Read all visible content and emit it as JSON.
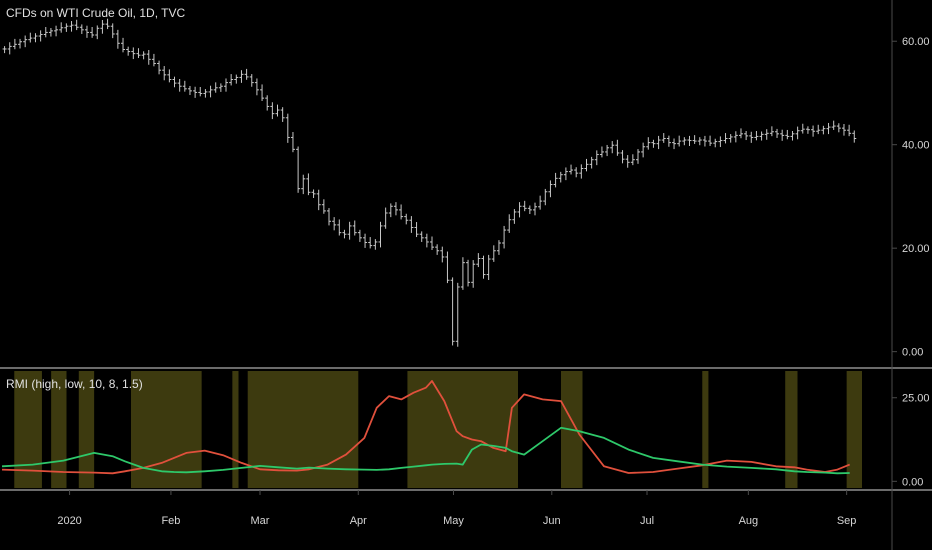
{
  "chart_data": [
    {
      "type": "bar",
      "subtype": "ohlc",
      "title": "CFDs on WTI Crude Oil, 1D, TVC",
      "y_ticks": [
        "60.00",
        "40.00",
        "20.00",
        "0.00"
      ],
      "ylim": [
        -2,
        67
      ],
      "x_range": [
        0,
        280
      ],
      "series_color": "#c8c8c8",
      "close": [
        58.5,
        59.0,
        59.4,
        59.9,
        60.3,
        60.6,
        61.0,
        61.3,
        61.7,
        62.0,
        62.2,
        62.6,
        62.9,
        63.1,
        62.7,
        62.2,
        61.7,
        61.2,
        62.5,
        63.3,
        62.9,
        61.4,
        59.6,
        58.4,
        58.0,
        57.6,
        57.3,
        57.5,
        56.5,
        55.7,
        54.4,
        53.5,
        52.6,
        51.9,
        51.3,
        50.8,
        50.4,
        50.1,
        49.9,
        50.2,
        50.6,
        51.0,
        51.3,
        52.0,
        52.6,
        53.0,
        53.6,
        53.1,
        52.0,
        50.6,
        49.0,
        47.4,
        46.0,
        46.7,
        45.2,
        41.4,
        39.1,
        31.5,
        33.4,
        30.8,
        30.5,
        28.4,
        27.2,
        25.2,
        24.5,
        23.0,
        22.7,
        24.3,
        23.0,
        22.0,
        21.1,
        20.5,
        21.2,
        24.3,
        26.8,
        28.1,
        27.4,
        26.1,
        25.4,
        24.0,
        22.7,
        22.0,
        21.2,
        20.2,
        19.5,
        18.3,
        13.8,
        2.0,
        12.5,
        17.2,
        13.4,
        16.9,
        18.0,
        14.9,
        17.9,
        19.5,
        21.0,
        23.5,
        25.5,
        27.0,
        28.1,
        27.7,
        27.4,
        28.0,
        29.1,
        30.9,
        32.3,
        33.5,
        34.2,
        34.8,
        35.1,
        34.5,
        35.4,
        36.2,
        37.1,
        38.1,
        38.6,
        39.4,
        39.9,
        38.4,
        37.2,
        36.6,
        37.1,
        38.6,
        39.6,
        40.4,
        40.2,
        40.9,
        41.2,
        40.4,
        40.2,
        40.7,
        40.9,
        40.8,
        40.7,
        40.9,
        40.7,
        40.3,
        40.6,
        40.8,
        41.2,
        41.5,
        41.8,
        42.1,
        41.7,
        41.4,
        41.6,
        42.0,
        42.2,
        42.5,
        42.1,
        41.8,
        41.6,
        42.1,
        42.7,
        43.0,
        42.9,
        42.6,
        42.8,
        43.1,
        43.4,
        43.6,
        43.2,
        42.8,
        42.2,
        41.2
      ]
    },
    {
      "type": "line",
      "title": "RMI (high, low, 10, 8, 1.5)",
      "y_ticks": [
        "25.00",
        "0.00"
      ],
      "ylim": [
        -2,
        33
      ],
      "x_range": [
        0,
        280
      ],
      "series": [
        {
          "color": "#e0503c",
          "x": [
            0,
            10,
            20,
            30,
            36,
            40,
            46,
            52,
            56,
            60,
            66,
            72,
            78,
            84,
            90,
            96,
            100,
            106,
            112,
            118,
            122,
            126,
            130,
            134,
            138,
            140,
            144,
            148,
            150,
            153,
            156,
            160,
            164,
            166,
            170,
            176,
            182,
            188,
            196,
            204,
            212,
            220,
            228,
            236,
            244,
            252,
            258,
            262,
            268,
            272,
            276
          ],
          "values": [
            3.5,
            3.2,
            2.8,
            2.6,
            2.4,
            3.0,
            4.0,
            5.5,
            7.0,
            8.5,
            9.2,
            7.8,
            5.5,
            3.6,
            3.3,
            3.2,
            3.6,
            5.0,
            8.0,
            13.0,
            22.0,
            25.5,
            24.5,
            26.5,
            28.0,
            30.0,
            24.0,
            15.0,
            13.5,
            12.5,
            12.0,
            10.0,
            9.0,
            22.0,
            26.0,
            24.5,
            24.0,
            14.0,
            4.5,
            2.5,
            2.8,
            3.8,
            4.8,
            6.2,
            5.8,
            4.5,
            4.2,
            3.5,
            2.8,
            3.5,
            5.0
          ]
        },
        {
          "color": "#2ec86a",
          "x": [
            0,
            10,
            20,
            30,
            36,
            40,
            46,
            52,
            56,
            60,
            66,
            72,
            78,
            84,
            90,
            96,
            100,
            106,
            112,
            118,
            122,
            126,
            130,
            134,
            138,
            140,
            144,
            148,
            150,
            153,
            156,
            160,
            164,
            166,
            170,
            176,
            182,
            188,
            196,
            204,
            212,
            220,
            228,
            236,
            244,
            252,
            258,
            262,
            268,
            272,
            276
          ],
          "values": [
            4.5,
            5.0,
            6.2,
            8.5,
            7.5,
            6.0,
            4.0,
            3.0,
            2.8,
            2.7,
            3.0,
            3.4,
            4.0,
            4.6,
            4.2,
            3.8,
            4.1,
            3.8,
            3.6,
            3.5,
            3.4,
            3.6,
            4.0,
            4.4,
            4.8,
            5.0,
            5.2,
            5.3,
            5.0,
            9.5,
            11.0,
            10.6,
            10.0,
            9.0,
            8.0,
            12.0,
            16.0,
            15.0,
            13.0,
            9.5,
            7.0,
            6.0,
            5.0,
            4.4,
            4.0,
            3.6,
            3.0,
            2.8,
            2.6,
            2.4,
            2.5
          ]
        }
      ],
      "highlight_color": "#3d3a0f",
      "highlight_ranges": [
        [
          4,
          13
        ],
        [
          16,
          21
        ],
        [
          25,
          30
        ],
        [
          42,
          65
        ],
        [
          75,
          77
        ],
        [
          80,
          116
        ],
        [
          132,
          168
        ],
        [
          182,
          189
        ],
        [
          228,
          230
        ],
        [
          255,
          259
        ],
        [
          275,
          280
        ]
      ]
    }
  ],
  "x_axis": {
    "range": [
      0,
      280
    ],
    "ticks": [
      {
        "x": 22,
        "label": "2020"
      },
      {
        "x": 55,
        "label": "Feb"
      },
      {
        "x": 84,
        "label": "Mar"
      },
      {
        "x": 116,
        "label": "Apr"
      },
      {
        "x": 147,
        "label": "May"
      },
      {
        "x": 179,
        "label": "Jun"
      },
      {
        "x": 210,
        "label": "Jul"
      },
      {
        "x": 243,
        "label": "Aug"
      },
      {
        "x": 275,
        "label": "Sep"
      }
    ]
  }
}
